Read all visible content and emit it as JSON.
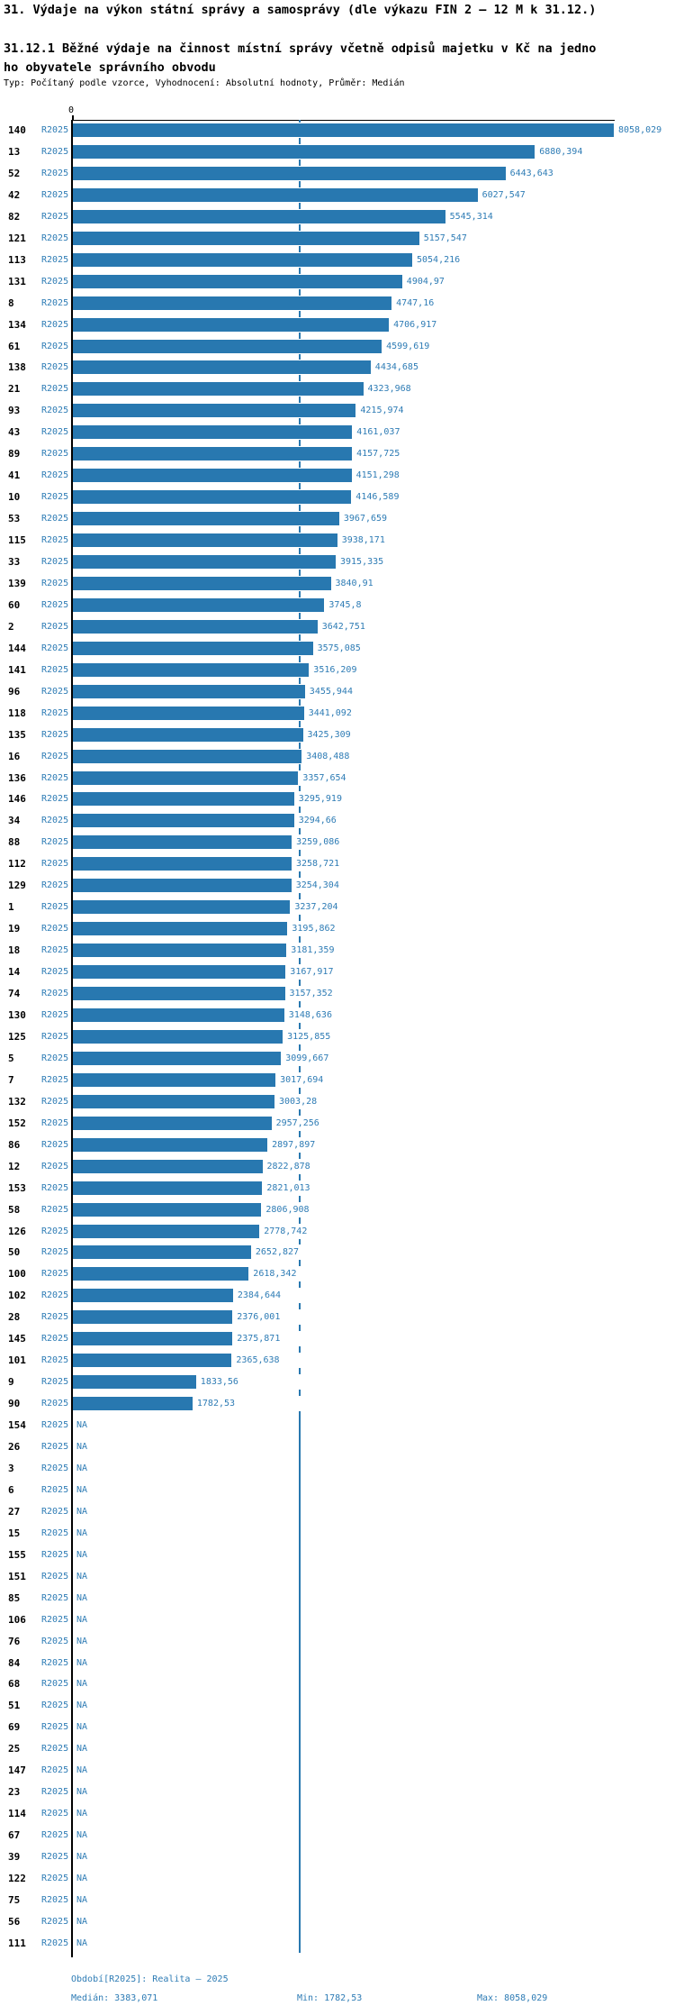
{
  "title": "31. Výdaje na výkon státní správy a samosprávy (dle výkazu FIN 2 – 12 M k 31.12.)",
  "subtitle_lines": [
    "31.12.1 Běžné výdaje na činnost místní správy včetně odpisů majetku v Kč na jedno",
    "ho obyvatele správního obvodu"
  ],
  "meta": "Typ: Počítaný podle vzorce, Vyhodnocení: Absolutní hodnoty, Průměr: Medián",
  "axis": {
    "zero_label": "0"
  },
  "footer": {
    "period": "Období[R2025]: Realita – 2025",
    "median": "Medián: 3383,071",
    "min": "Min: 1782,53",
    "max": "Max: 8058,029"
  },
  "colors": {
    "bar": "#2878b0",
    "text_blue": "#2e7cb5",
    "median_line": "#2878b0",
    "axis": "#000000"
  },
  "chart_data": {
    "type": "bar",
    "orientation": "horizontal",
    "series_label": "R2025",
    "na_label": "NA",
    "median": 3383.071,
    "min": 1782.53,
    "max": 8058.029,
    "xlim": [
      0,
      8058.029
    ],
    "categories": [
      "140",
      "13",
      "52",
      "42",
      "82",
      "121",
      "113",
      "131",
      "8",
      "134",
      "61",
      "138",
      "21",
      "93",
      "43",
      "89",
      "41",
      "10",
      "53",
      "115",
      "33",
      "139",
      "60",
      "2",
      "144",
      "141",
      "96",
      "118",
      "135",
      "16",
      "136",
      "146",
      "34",
      "88",
      "112",
      "129",
      "1",
      "19",
      "18",
      "14",
      "74",
      "130",
      "125",
      "5",
      "7",
      "132",
      "152",
      "86",
      "12",
      "153",
      "58",
      "126",
      "50",
      "100",
      "102",
      "28",
      "145",
      "101",
      "9",
      "90",
      "154",
      "26",
      "3",
      "6",
      "27",
      "15",
      "155",
      "151",
      "85",
      "106",
      "76",
      "84",
      "68",
      "51",
      "69",
      "25",
      "147",
      "23",
      "114",
      "67",
      "39",
      "122",
      "75",
      "56",
      "111"
    ],
    "values": [
      8058.029,
      6880.394,
      6443.643,
      6027.547,
      5545.314,
      5157.547,
      5054.216,
      4904.97,
      4747.16,
      4706.917,
      4599.619,
      4434.685,
      4323.968,
      4215.974,
      4161.037,
      4157.725,
      4151.298,
      4146.589,
      3967.659,
      3938.171,
      3915.335,
      3840.91,
      3745.8,
      3642.751,
      3575.085,
      3516.209,
      3455.944,
      3441.092,
      3425.309,
      3408.488,
      3357.654,
      3295.919,
      3294.66,
      3259.086,
      3258.721,
      3254.304,
      3237.204,
      3195.862,
      3181.359,
      3167.917,
      3157.352,
      3148.636,
      3125.855,
      3099.667,
      3017.694,
      3003.28,
      2957.256,
      2897.897,
      2822.878,
      2821.013,
      2806.908,
      2778.742,
      2652.827,
      2618.342,
      2384.644,
      2376.001,
      2375.871,
      2365.638,
      1833.56,
      1782.53,
      null,
      null,
      null,
      null,
      null,
      null,
      null,
      null,
      null,
      null,
      null,
      null,
      null,
      null,
      null,
      null,
      null,
      null,
      null,
      null,
      null,
      null,
      null,
      null,
      null
    ],
    "value_labels": [
      "8058,029",
      "6880,394",
      "6443,643",
      "6027,547",
      "5545,314",
      "5157,547",
      "5054,216",
      "4904,97",
      "4747,16",
      "4706,917",
      "4599,619",
      "4434,685",
      "4323,968",
      "4215,974",
      "4161,037",
      "4157,725",
      "4151,298",
      "4146,589",
      "3967,659",
      "3938,171",
      "3915,335",
      "3840,91",
      "3745,8",
      "3642,751",
      "3575,085",
      "3516,209",
      "3455,944",
      "3441,092",
      "3425,309",
      "3408,488",
      "3357,654",
      "3295,919",
      "3294,66",
      "3259,086",
      "3258,721",
      "3254,304",
      "3237,204",
      "3195,862",
      "3181,359",
      "3167,917",
      "3157,352",
      "3148,636",
      "3125,855",
      "3099,667",
      "3017,694",
      "3003,28",
      "2957,256",
      "2897,897",
      "2822,878",
      "2821,013",
      "2806,908",
      "2778,742",
      "2652,827",
      "2618,342",
      "2384,644",
      "2376,001",
      "2375,871",
      "2365,638",
      "1833,56",
      "1782,53",
      "NA",
      "NA",
      "NA",
      "NA",
      "NA",
      "NA",
      "NA",
      "NA",
      "NA",
      "NA",
      "NA",
      "NA",
      "NA",
      "NA",
      "NA",
      "NA",
      "NA",
      "NA",
      "NA",
      "NA",
      "NA",
      "NA",
      "NA",
      "NA",
      "NA"
    ]
  }
}
